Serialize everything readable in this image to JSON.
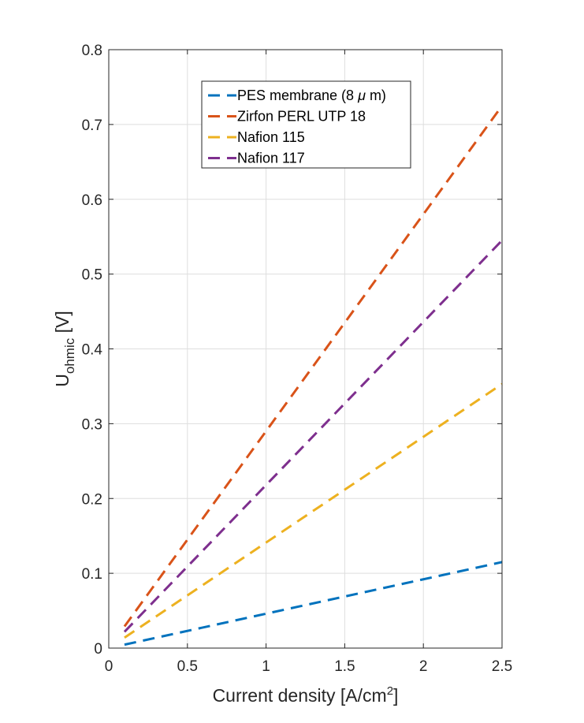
{
  "chart_data": {
    "type": "line",
    "title": "",
    "xlabel": {
      "base": "Current density [A/cm",
      "sup": "2",
      "tail": "]"
    },
    "ylabel": {
      "base": "U",
      "sub": "ohmic",
      "tail": " [V]"
    },
    "xlim": [
      0,
      2.5
    ],
    "ylim": [
      0,
      0.8
    ],
    "xticks": [
      0,
      0.5,
      1,
      1.5,
      2,
      2.5
    ],
    "xtick_labels": [
      "0",
      "0.5",
      "1",
      "1.5",
      "2",
      "2.5"
    ],
    "yticks": [
      0,
      0.1,
      0.2,
      0.3,
      0.4,
      0.5,
      0.6,
      0.7,
      0.8
    ],
    "ytick_labels": [
      "0",
      "0.1",
      "0.2",
      "0.3",
      "0.4",
      "0.5",
      "0.6",
      "0.7",
      "0.8"
    ],
    "grid": true,
    "legend_position": "top-center",
    "line_style": "dashed",
    "x": [
      0.1,
      2.5
    ],
    "series": [
      {
        "name": "PES membrane (8 μ m)",
        "label_parts": [
          "PES membrane (8 ",
          "μ",
          " m)"
        ],
        "color": "#0072BD",
        "values": [
          0.0046,
          0.115
        ]
      },
      {
        "name": "Zirfon PERL UTP 18",
        "label_parts": [
          "Zirfon PERL UTP 18"
        ],
        "color": "#D95319",
        "values": [
          0.029,
          0.725
        ]
      },
      {
        "name": "Nafion 115",
        "label_parts": [
          "Nafion 115"
        ],
        "color": "#EDB120",
        "values": [
          0.014,
          0.353
        ]
      },
      {
        "name": "Nafion 117",
        "label_parts": [
          "Nafion 117"
        ],
        "color": "#7E2F8E",
        "values": [
          0.0218,
          0.545
        ]
      }
    ]
  }
}
